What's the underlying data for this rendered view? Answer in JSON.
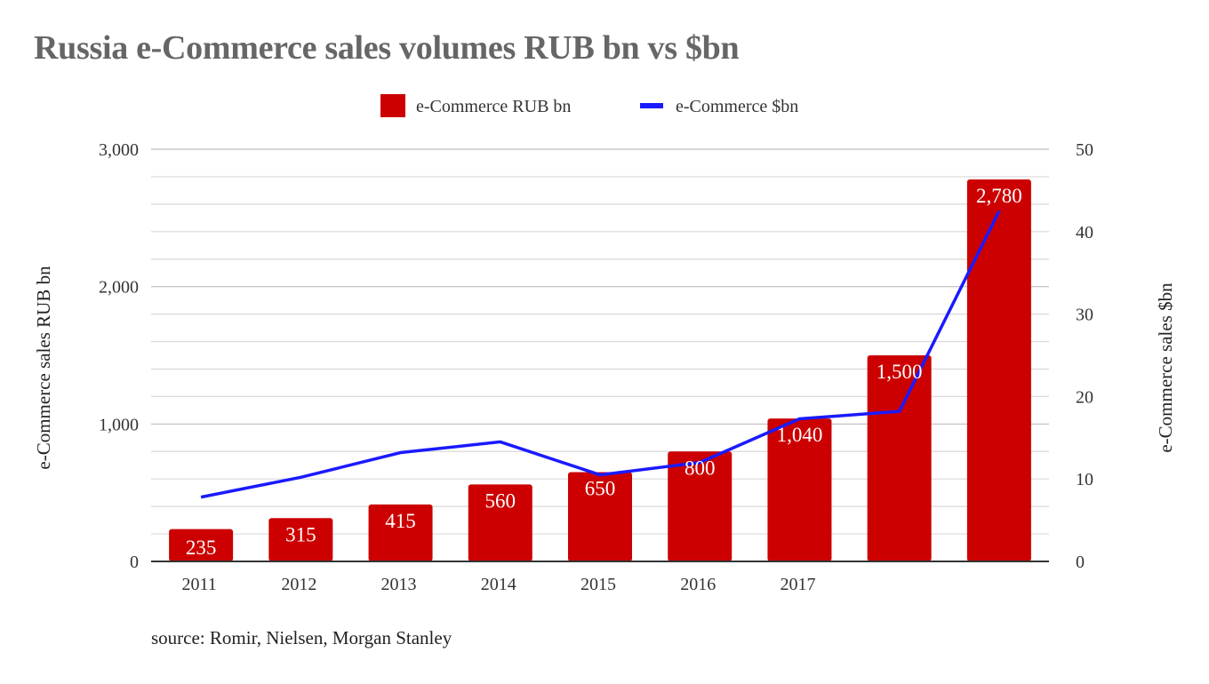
{
  "title": "Russia e-Commerce sales volumes RUB bn vs $bn",
  "source": "source: Romir, Nielsen, Morgan Stanley",
  "colors": {
    "bar": "#cc0000",
    "line": "#1a1aff",
    "grid": "#d9d9d9",
    "axis": "#333333"
  },
  "chart_data": {
    "type": "bar",
    "categories": [
      "2011",
      "2012",
      "2013",
      "2014",
      "2015",
      "2016",
      "2017",
      "",
      ""
    ],
    "series": [
      {
        "name": "e-Commerce RUB bn",
        "type": "bar",
        "axis": "left",
        "values": [
          235,
          315,
          415,
          560,
          650,
          800,
          1040,
          1500,
          2780
        ],
        "labels": [
          "235",
          "315",
          "415",
          "560",
          "650",
          "800",
          "1,040",
          "1,500",
          "2,780"
        ]
      },
      {
        "name": "e-Commerce $bn",
        "type": "line",
        "axis": "right",
        "values": [
          7.8,
          10.2,
          13.2,
          14.5,
          10.5,
          12,
          17.3,
          18.2,
          42.5
        ]
      }
    ],
    "ylabel": "e-Commerce sales RUB bn",
    "y2label": "e-Commerce sales $bn",
    "ylim": [
      0,
      3000
    ],
    "y2lim": [
      0,
      50
    ],
    "yticks": [
      "0",
      "1,000",
      "2,000",
      "3,000"
    ],
    "y2ticks": [
      "0",
      "10",
      "20",
      "30",
      "40",
      "50"
    ],
    "legend": "top-center",
    "grid": true
  }
}
